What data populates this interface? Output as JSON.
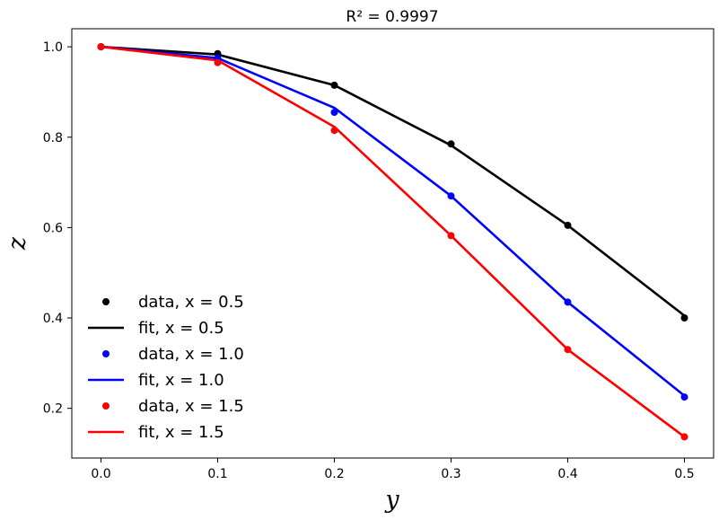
{
  "chart_data": {
    "type": "line",
    "title": "R² = 0.9997",
    "xlabel": "y",
    "ylabel": "z",
    "xlim": [
      -0.025,
      0.525
    ],
    "ylim": [
      0.09,
      1.04
    ],
    "xticks": [
      0.0,
      0.1,
      0.2,
      0.3,
      0.4,
      0.5
    ],
    "xtick_labels": [
      "0.0",
      "0.1",
      "0.2",
      "0.3",
      "0.4",
      "0.5"
    ],
    "yticks": [
      0.2,
      0.4,
      0.6,
      0.8,
      1.0
    ],
    "ytick_labels": [
      "0.2",
      "0.4",
      "0.6",
      "0.8",
      "1.0"
    ],
    "grid": false,
    "legend_position": "lower-left",
    "x": [
      0.0,
      0.1,
      0.2,
      0.3,
      0.4,
      0.5
    ],
    "series": [
      {
        "name": "data, x = 0.5",
        "kind": "scatter",
        "color": "#000000",
        "values": [
          1.0,
          0.985,
          0.915,
          0.785,
          0.605,
          0.4
        ]
      },
      {
        "name": "fit, x = 0.5",
        "kind": "line",
        "color": "#000000",
        "values": [
          1.0,
          0.983,
          0.915,
          0.782,
          0.605,
          0.405
        ]
      },
      {
        "name": "data, x = 1.0",
        "kind": "scatter",
        "color": "#0000ff",
        "values": [
          1.0,
          0.975,
          0.855,
          0.67,
          0.435,
          0.225
        ]
      },
      {
        "name": "fit, x = 1.0",
        "kind": "line",
        "color": "#0000ff",
        "values": [
          1.0,
          0.975,
          0.865,
          0.67,
          0.435,
          0.228
        ]
      },
      {
        "name": "data, x = 1.5",
        "kind": "scatter",
        "color": "#ff0000",
        "values": [
          1.0,
          0.965,
          0.815,
          0.582,
          0.33,
          0.137
        ]
      },
      {
        "name": "fit, x = 1.5",
        "kind": "line",
        "color": "#ff0000",
        "values": [
          1.0,
          0.97,
          0.823,
          0.582,
          0.33,
          0.137
        ]
      }
    ]
  }
}
